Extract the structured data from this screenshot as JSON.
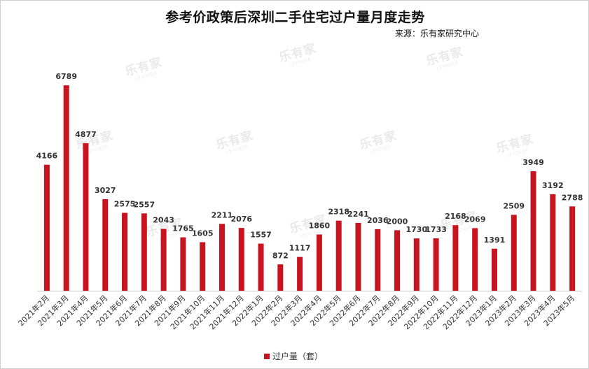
{
  "title": "参考价政策后深圳二手住宅过户量月度走势",
  "source": "来源：乐有家研究中心",
  "watermark": {
    "main": "乐有家",
    "sub": "LEYOUJIA"
  },
  "legend": {
    "label": "过户量（套）"
  },
  "colors": {
    "bar": "#c8141e",
    "axis": "#c8c8c8",
    "label": "#333333"
  },
  "chart_data": {
    "type": "bar",
    "title": "参考价政策后深圳二手住宅过户量月度走势",
    "xlabel": "",
    "ylabel": "",
    "ylim": [
      0,
      7300
    ],
    "grid": false,
    "legend_position": "bottom",
    "categories": [
      "2021年2月",
      "2021年3月",
      "2021年4月",
      "2021年5月",
      "2021年6月",
      "2021年7月",
      "2021年8月",
      "2021年9月",
      "2021年10月",
      "2021年11月",
      "2021年12月",
      "2022年1月",
      "2022年2月",
      "2022年3月",
      "2022年4月",
      "2022年5月",
      "2022年6月",
      "2022年7月",
      "2022年8月",
      "2022年9月",
      "2022年10月",
      "2022年11月",
      "2022年12月",
      "2023年1月",
      "2023年2月",
      "2023年3月",
      "2023年4月",
      "2023年5月"
    ],
    "series": [
      {
        "name": "过户量（套）",
        "values": [
          4166,
          6789,
          4877,
          3027,
          2575,
          2557,
          2043,
          1765,
          1605,
          2211,
          2076,
          1557,
          872,
          1117,
          1860,
          2318,
          2241,
          2036,
          2000,
          1730,
          1733,
          2168,
          2069,
          1391,
          2509,
          3949,
          3192,
          2788
        ]
      }
    ]
  }
}
